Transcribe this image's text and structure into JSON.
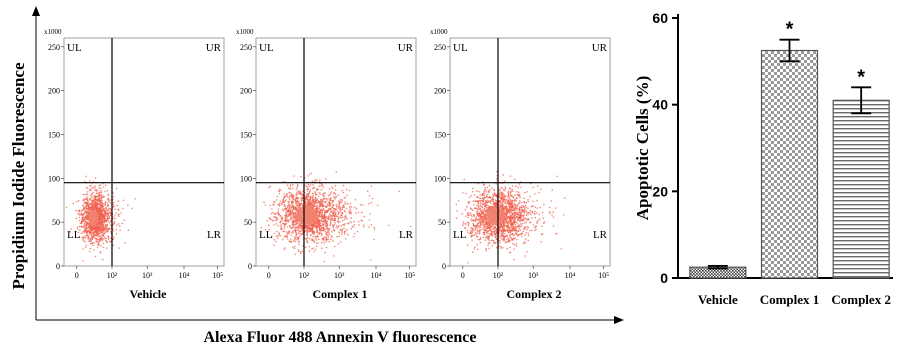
{
  "chart_data": [
    {
      "type": "scatter",
      "panel": "Vehicle",
      "quadrants": [
        "UL",
        "UR",
        "LL",
        "LR"
      ],
      "y_multiplier": "x1000",
      "y_ticks": [
        "0",
        "50",
        "100",
        "150",
        "200",
        "250"
      ],
      "x_ticks": [
        "0",
        "10²",
        "10³",
        "10⁴",
        "10⁵"
      ],
      "title": "Vehicle",
      "population_center": {
        "x": 50,
        "y": 55
      },
      "spread": {
        "x": 40,
        "y": 28
      },
      "n_points": 1400
    },
    {
      "type": "scatter",
      "panel": "Complex 1",
      "quadrants": [
        "UL",
        "UR",
        "LL",
        "LR"
      ],
      "y_multiplier": "x1000",
      "y_ticks": [
        "0",
        "50",
        "100",
        "150",
        "200",
        "250"
      ],
      "x_ticks": [
        "0",
        "10²",
        "10³",
        "10⁴",
        "10⁵"
      ],
      "title": "Complex 1",
      "population_center": {
        "x": 110,
        "y": 58
      },
      "spread": {
        "x": 90,
        "y": 32
      },
      "n_points": 1700
    },
    {
      "type": "scatter",
      "panel": "Complex 2",
      "quadrants": [
        "UL",
        "UR",
        "LL",
        "LR"
      ],
      "y_multiplier": "x1000",
      "y_ticks": [
        "0",
        "50",
        "100",
        "150",
        "200",
        "250"
      ],
      "x_ticks": [
        "0",
        "10²",
        "10³",
        "10⁴",
        "10⁵"
      ],
      "title": "Complex 2",
      "population_center": {
        "x": 95,
        "y": 57
      },
      "spread": {
        "x": 80,
        "y": 30
      },
      "n_points": 1700
    },
    {
      "type": "bar",
      "categories": [
        "Vehicle",
        "Complex 1",
        "Complex 2"
      ],
      "values": [
        2.5,
        52.5,
        41
      ],
      "errors": [
        0.3,
        2.5,
        3
      ],
      "significance": [
        "",
        "*",
        "*"
      ],
      "ylabel": "Apoptotic Cells (%)",
      "ylim": [
        0,
        60
      ],
      "yticks": [
        0,
        20,
        40,
        60
      ],
      "patterns": [
        "dense-crosshatch",
        "checker",
        "horizontal-lines"
      ]
    }
  ],
  "shared_labels": {
    "y_axis": "Propidium Iodide Fluorescence",
    "x_axis": "Alexa Fluor 488 Annexin V fluorescence"
  },
  "colors": {
    "dots": "#f0624f",
    "dots_dense": "#f2816f",
    "gate_lines": "#000000",
    "bar_fill": "#ffffff",
    "bar_pattern": "#555555"
  }
}
